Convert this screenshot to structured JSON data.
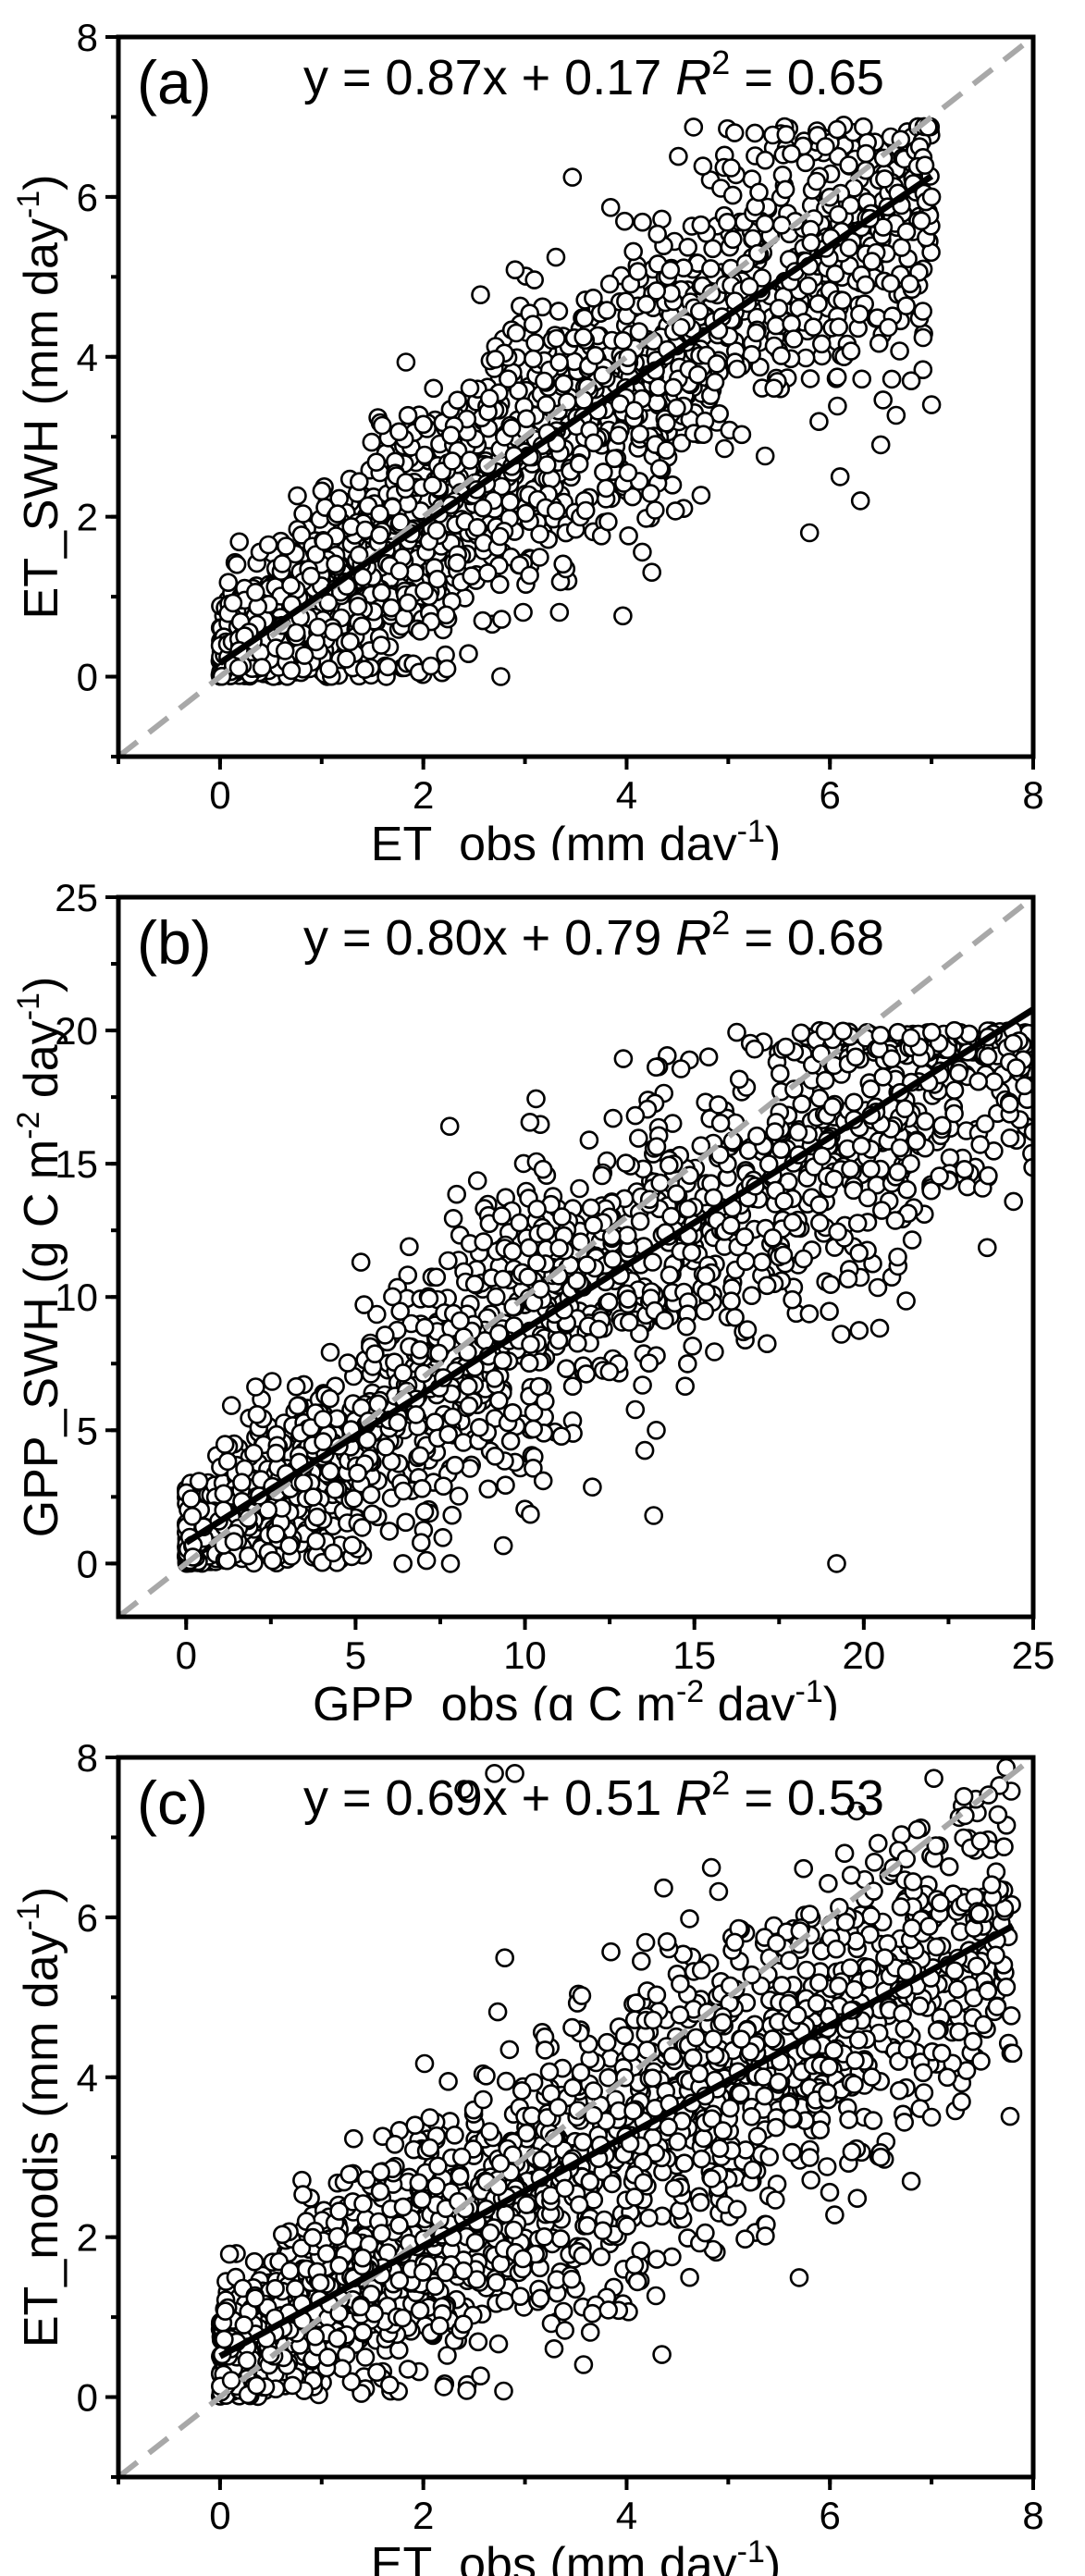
{
  "chart_data": [
    {
      "type": "scatter",
      "panel": "(a)",
      "xlabel": "ET_obs (mm day",
      "xlabel_sup": "-1",
      "xlabel_end": ")",
      "ylabel": "ET_SWH (mm day",
      "ylabel_sup": "-1",
      "ylabel_end": ")",
      "xlim": [
        -1,
        8
      ],
      "ylim": [
        -1,
        8
      ],
      "xticks": [
        0,
        2,
        4,
        6,
        8
      ],
      "yticks": [
        0,
        2,
        4,
        6,
        8
      ],
      "fit": {
        "slope": 0.87,
        "intercept": 0.17,
        "x_range": [
          0,
          7
        ]
      },
      "equation": {
        "lhs": "y = 0.87x + 0.17 ",
        "r": "R",
        "sup": "2",
        "rhs": " = 0.65"
      },
      "one_to_one_line": true,
      "grid": false,
      "points": {
        "n": 1900,
        "x_max": 7.0,
        "noise": 0.95,
        "y_min": 0,
        "y_max": 6.9,
        "seed": 11,
        "extra": [
          [
            6.8,
            3.7
          ],
          [
            7.0,
            3.4
          ],
          [
            6.5,
            2.9
          ],
          [
            6.3,
            2.2
          ],
          [
            5.8,
            1.8
          ],
          [
            6.1,
            2.5
          ],
          [
            6.9,
            5.7
          ],
          [
            7.0,
            6.0
          ]
        ]
      }
    },
    {
      "type": "scatter",
      "panel": "(b)",
      "xlabel": "GPP_obs (g C m",
      "xlabel_sup": "-2",
      "xlabel_mid": " day",
      "xlabel_sup2": "-1",
      "xlabel_end": ")",
      "ylabel": "GPP_SWH (g C m",
      "ylabel_sup": "-2",
      "ylabel_mid": " day",
      "ylabel_sup2": "-1",
      "ylabel_end": ")",
      "xlim": [
        -2,
        25
      ],
      "ylim": [
        -2,
        25
      ],
      "xticks": [
        0,
        5,
        10,
        15,
        20,
        25
      ],
      "yticks": [
        0,
        5,
        10,
        15,
        20,
        25
      ],
      "fit": {
        "slope": 0.8,
        "intercept": 0.79,
        "x_range": [
          0,
          25
        ]
      },
      "equation": {
        "lhs": "y = 0.80x + 0.79 ",
        "r": "R",
        "sup": "2",
        "rhs": " = 0.68"
      },
      "one_to_one_line": true,
      "grid": false,
      "points": {
        "n": 1800,
        "x_max": 25,
        "noise": 3.0,
        "y_min": 0,
        "y_max": 20,
        "seed": 23,
        "extra": [
          [
            19.2,
            0.0
          ],
          [
            13.8,
            1.8
          ],
          [
            24.5,
            18.6
          ],
          [
            25.0,
            16.2
          ],
          [
            22.8,
            18.4
          ],
          [
            21.0,
            11.5
          ],
          [
            7.8,
            0.0
          ],
          [
            6.4,
            0.0
          ]
        ]
      }
    },
    {
      "type": "scatter",
      "panel": "(c)",
      "xlabel": "ET_obs (mm day",
      "xlabel_sup": "-1",
      "xlabel_end": ")",
      "ylabel": "ET_modis (mm day",
      "ylabel_sup": "-1",
      "ylabel_end": ")",
      "xlim": [
        -1,
        8
      ],
      "ylim": [
        -1,
        8
      ],
      "xticks": [
        0,
        2,
        4,
        6,
        8
      ],
      "yticks": [
        0,
        2,
        4,
        6,
        8
      ],
      "fit": {
        "slope": 0.69,
        "intercept": 0.51,
        "x_range": [
          0,
          7.8
        ]
      },
      "equation": {
        "lhs": "y = 0.69x + 0.51 ",
        "r": "R",
        "sup": "2",
        "rhs": " = 0.53"
      },
      "one_to_one_line": true,
      "grid": false,
      "points": {
        "n": 1900,
        "x_max": 7.8,
        "noise": 1.0,
        "y_min": 0,
        "y_max": 7.9,
        "seed": 37,
        "extra": [
          [
            2.7,
            7.8
          ],
          [
            2.9,
            7.8
          ],
          [
            2.4,
            7.6
          ],
          [
            7.8,
            4.3
          ],
          [
            7.0,
            3.5
          ],
          [
            6.8,
            2.7
          ],
          [
            6.5,
            3.0
          ],
          [
            7.1,
            4.3
          ]
        ]
      }
    }
  ]
}
